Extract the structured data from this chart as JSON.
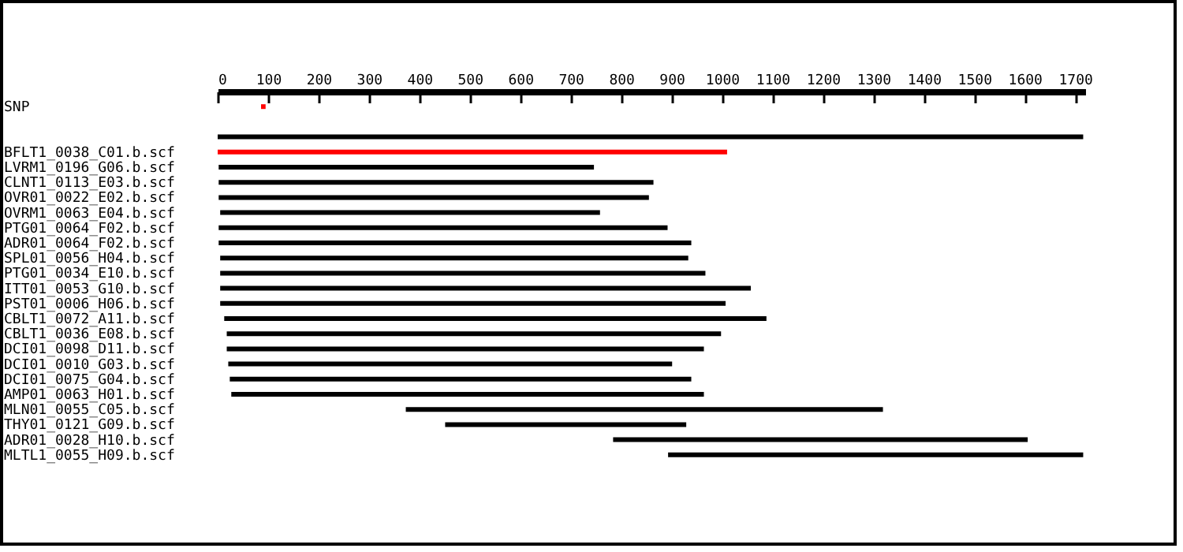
{
  "chart_data": {
    "type": "bar",
    "orientation": "horizontal",
    "legend": false,
    "grid": false,
    "categories": [
      "SNP",
      null,
      null,
      "BFLT1_0038_C01.b.scf",
      "LVRM1_0196_G06.b.scf",
      "CLNT1_0113_E03.b.scf",
      "OVR01_0022_E02.b.scf",
      "OVRM1_0063_E04.b.scf",
      "PTG01_0064_F02.b.scf",
      "ADR01_0064_F02.b.scf",
      "SPL01_0056_H04.b.scf",
      "PTG01_0034_E10.b.scf",
      "ITT01_0053_G10.b.scf",
      "PST01_0006_H06.b.scf",
      "CBLT1_0072_A11.b.scf",
      "CBLT1_0036_E08.b.scf",
      "DCI01_0098_D11.b.scf",
      "DCI01_0010_G03.b.scf",
      "DCI01_0075_G04.b.scf",
      "AMP01_0063_H01.b.scf",
      "MLN01_0055_C05.b.scf",
      "THY01_0121_G09.b.scf",
      "ADR01_0028_H10.b.scf",
      "MLTL1_0055_H09.b.scf"
    ],
    "base": [
      86,
      null,
      0,
      0,
      2,
      2,
      2,
      5,
      2,
      2,
      5,
      5,
      5,
      5,
      13,
      18,
      18,
      21,
      24,
      27,
      373,
      451,
      784,
      893
    ],
    "values": [
      9,
      null,
      1716,
      1010,
      744,
      862,
      853,
      753,
      890,
      937,
      928,
      962,
      1052,
      1002,
      1075,
      980,
      946,
      880,
      915,
      937,
      946,
      478,
      822,
      823
    ],
    "colors": [
      "#ff0000",
      "#000000",
      "#000000",
      "#ff0000",
      "#000000",
      "#000000",
      "#000000",
      "#000000",
      "#000000",
      "#000000",
      "#000000",
      "#000000",
      "#000000",
      "#000000",
      "#000000",
      "#000000",
      "#000000",
      "#000000",
      "#000000",
      "#000000",
      "#000000",
      "#000000",
      "#000000",
      "#000000"
    ],
    "xlim": [
      0,
      1720
    ],
    "xticks": [
      0,
      100,
      200,
      300,
      400,
      500,
      600,
      700,
      800,
      900,
      1000,
      1100,
      1200,
      1300,
      1400,
      1500,
      1600,
      1700
    ]
  }
}
